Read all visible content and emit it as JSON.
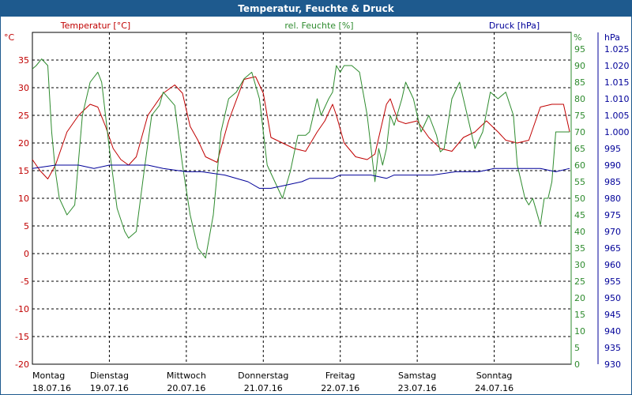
{
  "window": {
    "title": "Temperatur, Feuchte & Druck"
  },
  "colors": {
    "temperature": "#c00000",
    "humidity": "#2e8b2e",
    "pressure": "#000099",
    "grid": "#000000",
    "titlebar": "#1e5a8e"
  },
  "chart_data": {
    "type": "line",
    "title": "Temperatur, Feuchte & Druck",
    "grid": true,
    "x_days": [
      {
        "day": "Montag",
        "date": "18.07.16"
      },
      {
        "day": "Dienstag",
        "date": "19.07.16"
      },
      {
        "day": "Mittwoch",
        "date": "20.07.16"
      },
      {
        "day": "Donnerstag",
        "date": "21.07.16"
      },
      {
        "day": "Freitag",
        "date": "22.07.16"
      },
      {
        "day": "Samstag",
        "date": "23.07.16"
      },
      {
        "day": "Sonntag",
        "date": "24.07.16"
      }
    ],
    "x_range": [
      0,
      7
    ],
    "axes": {
      "left": {
        "label": "Temperatur [°C]",
        "unit": "°C",
        "range": [
          -20,
          40
        ],
        "ticks": [
          -20,
          -15,
          -10,
          -5,
          0,
          5,
          10,
          15,
          20,
          25,
          30,
          35
        ]
      },
      "right1": {
        "label": "rel. Feuchte [%]",
        "unit": "%",
        "range": [
          0,
          100
        ],
        "ticks": [
          0,
          5,
          10,
          15,
          20,
          25,
          30,
          35,
          40,
          45,
          50,
          55,
          60,
          65,
          70,
          75,
          80,
          85,
          90,
          95
        ]
      },
      "right2": {
        "label": "Druck [hPa]",
        "unit": "hPa",
        "range": [
          930,
          1030
        ],
        "ticks": [
          930,
          935,
          940,
          945,
          950,
          955,
          960,
          965,
          970,
          975,
          980,
          985,
          990,
          995,
          1000,
          1005,
          1010,
          1015,
          1020,
          1025
        ]
      }
    },
    "series": [
      {
        "name": "Temperatur [°C]",
        "axis": "left",
        "x": [
          0,
          0.1,
          0.2,
          0.3,
          0.45,
          0.6,
          0.75,
          0.85,
          0.95,
          1.05,
          1.15,
          1.25,
          1.35,
          1.5,
          1.7,
          1.85,
          1.95,
          2.05,
          2.15,
          2.25,
          2.4,
          2.55,
          2.75,
          2.9,
          3.0,
          3.1,
          3.25,
          3.4,
          3.55,
          3.7,
          3.8,
          3.9,
          3.95,
          4.05,
          4.2,
          4.35,
          4.45,
          4.6,
          4.65,
          4.75,
          4.85,
          5.0,
          5.15,
          5.3,
          5.45,
          5.6,
          5.75,
          5.9,
          6.05,
          6.15,
          6.3,
          6.45,
          6.6,
          6.75,
          6.9,
          6.98
        ],
        "y": [
          17,
          15,
          13.5,
          16,
          22,
          25,
          27,
          26.5,
          23,
          19,
          17,
          16,
          17.5,
          25,
          29,
          30.5,
          29,
          23,
          20.5,
          17.5,
          16.5,
          24,
          31.5,
          32,
          29,
          21,
          20,
          19,
          18.5,
          22,
          24,
          27,
          25,
          20,
          17.5,
          17,
          18,
          27,
          28,
          24,
          23.5,
          24,
          21,
          19,
          18.5,
          21,
          22,
          24,
          22,
          20.5,
          20,
          20.5,
          26.5,
          27,
          27,
          22
        ]
      },
      {
        "name": "rel. Feuchte [%]",
        "axis": "right1",
        "x": [
          0,
          0.05,
          0.12,
          0.2,
          0.25,
          0.3,
          0.35,
          0.45,
          0.55,
          0.65,
          0.75,
          0.85,
          0.9,
          1.0,
          1.1,
          1.2,
          1.25,
          1.35,
          1.45,
          1.55,
          1.65,
          1.7,
          1.85,
          1.95,
          2.05,
          2.15,
          2.25,
          2.35,
          2.45,
          2.55,
          2.65,
          2.75,
          2.85,
          2.95,
          3.05,
          3.15,
          3.25,
          3.35,
          3.45,
          3.55,
          3.6,
          3.7,
          3.75,
          3.85,
          3.9,
          3.95,
          4.0,
          4.05,
          4.15,
          4.25,
          4.35,
          4.45,
          4.5,
          4.55,
          4.6,
          4.65,
          4.7,
          4.8,
          4.85,
          4.95,
          5.05,
          5.15,
          5.25,
          5.3,
          5.35,
          5.45,
          5.55,
          5.65,
          5.75,
          5.85,
          5.95,
          6.05,
          6.15,
          6.25,
          6.3,
          6.35,
          6.4,
          6.45,
          6.5,
          6.55,
          6.6,
          6.65,
          6.7,
          6.75,
          6.8,
          6.9,
          6.98
        ],
        "y": [
          89,
          90,
          92,
          90,
          70,
          58,
          50,
          45,
          48,
          75,
          85,
          88,
          85,
          65,
          47,
          40,
          38,
          40,
          58,
          75,
          78,
          82,
          78,
          60,
          45,
          35,
          32,
          45,
          70,
          80,
          82,
          86,
          88,
          80,
          60,
          55,
          50,
          58,
          69,
          69,
          70,
          80,
          75,
          80,
          82,
          90,
          88,
          90,
          90,
          88,
          75,
          55,
          65,
          60,
          65,
          75,
          72,
          80,
          85,
          80,
          70,
          75,
          69,
          64,
          65,
          80,
          85,
          75,
          65,
          70,
          82,
          80,
          82,
          75,
          60,
          55,
          50,
          48,
          50,
          46,
          42,
          50,
          50,
          55,
          70,
          70,
          70
        ]
      },
      {
        "name": "Druck [hPa]",
        "axis": "right2",
        "x": [
          0,
          0.3,
          0.6,
          0.8,
          1.0,
          1.3,
          1.5,
          1.7,
          2.0,
          2.2,
          2.5,
          2.8,
          2.95,
          3.1,
          3.3,
          3.5,
          3.6,
          3.7,
          3.9,
          4.0,
          4.2,
          4.4,
          4.6,
          4.7,
          4.9,
          5.2,
          5.5,
          5.8,
          6.0,
          6.2,
          6.4,
          6.6,
          6.8,
          6.98
        ],
        "y": [
          989,
          990,
          990,
          989,
          990,
          990,
          990,
          989,
          988,
          988,
          987,
          985,
          983,
          983,
          984,
          985,
          986,
          986,
          986,
          987,
          987,
          987,
          986,
          987,
          987,
          987,
          988,
          988,
          989,
          989,
          989,
          989,
          988,
          989
        ]
      }
    ]
  }
}
